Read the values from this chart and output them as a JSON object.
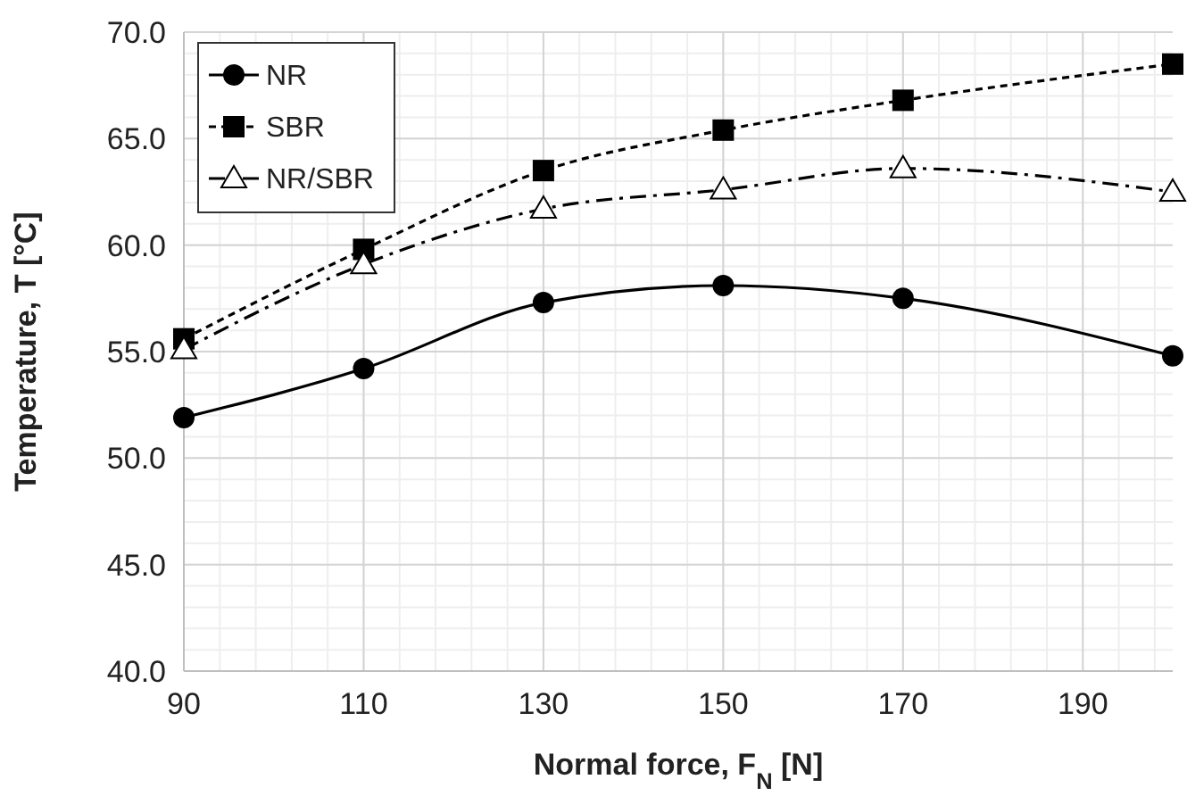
{
  "chart_data": {
    "type": "line",
    "xlabel": "Normal force, F$_{N}$ [N]",
    "ylabel": "Temperature, T [°C]",
    "x": [
      90,
      110,
      130,
      150,
      170,
      200
    ],
    "xlim": [
      90,
      200
    ],
    "xticks": [
      90,
      110,
      130,
      150,
      170,
      190
    ],
    "ylim": [
      40,
      70
    ],
    "yticks": [
      {
        "value": 40,
        "label": "40.0"
      },
      {
        "value": 45,
        "label": "45.0"
      },
      {
        "value": 50,
        "label": "50.0"
      },
      {
        "value": 55,
        "label": "55.0"
      },
      {
        "value": 60,
        "label": "60.0"
      },
      {
        "value": 65,
        "label": "65.0"
      },
      {
        "value": 70,
        "label": "70.0"
      }
    ],
    "grid": true,
    "legend": "top left",
    "series": [
      {
        "name": "NR",
        "color": "#000000",
        "marker": "circle",
        "line_style": "solid",
        "values": [
          51.9,
          54.2,
          57.3,
          58.1,
          57.5,
          54.8
        ]
      },
      {
        "name": "SBR",
        "color": "#000000",
        "marker": "square",
        "line_style": "dashed",
        "values": [
          55.6,
          59.8,
          63.5,
          65.4,
          66.8,
          68.5
        ]
      },
      {
        "name": "NR/SBR",
        "color": "#000000",
        "marker": "triangle",
        "line_style": "dashdot",
        "values": [
          55.1,
          59.1,
          61.7,
          62.6,
          63.6,
          62.5
        ]
      }
    ]
  }
}
